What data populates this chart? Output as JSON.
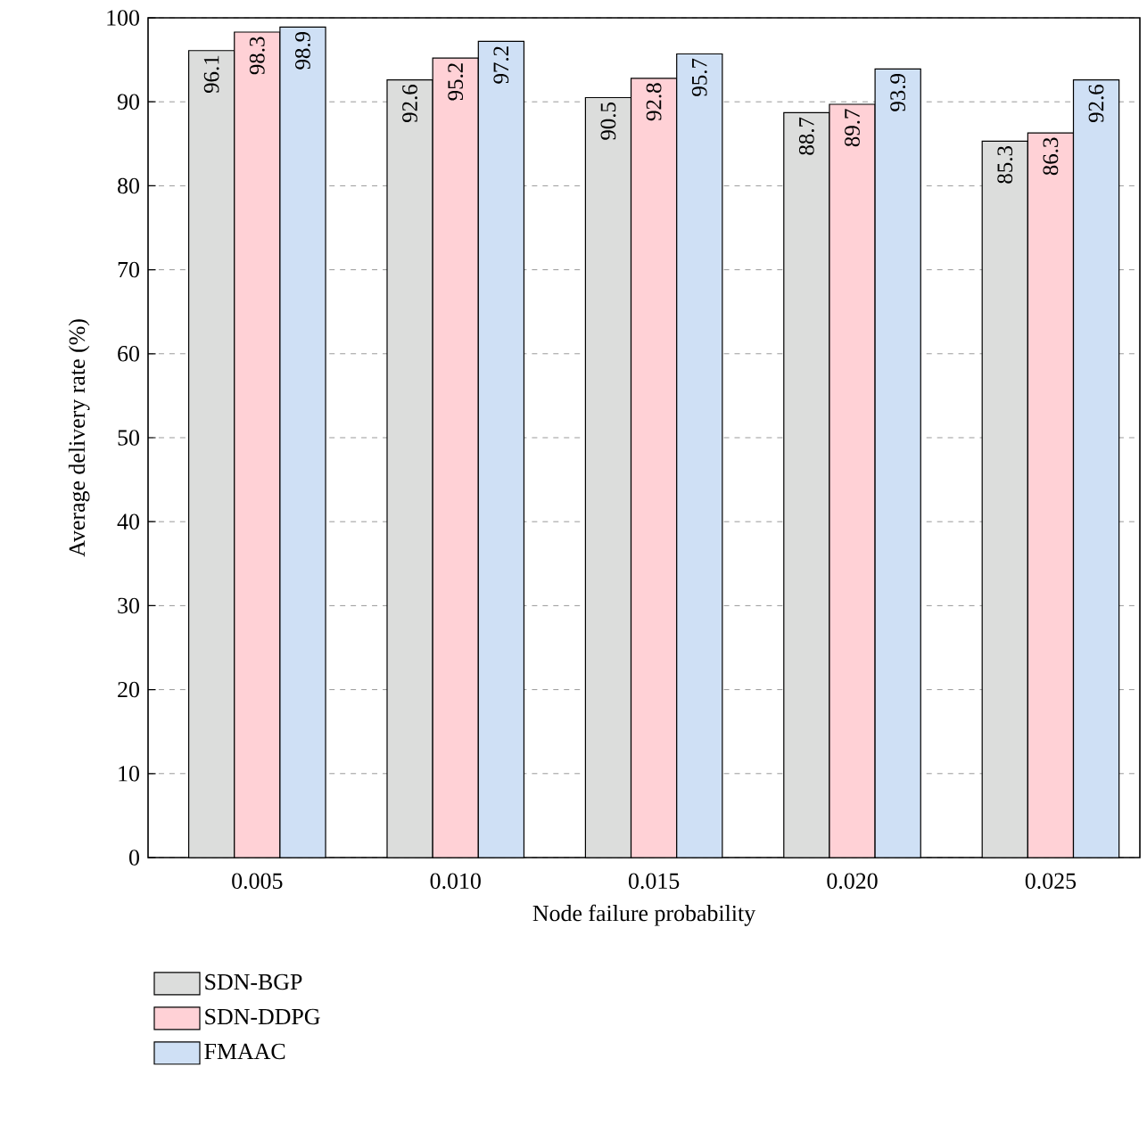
{
  "chart_data": {
    "type": "bar",
    "xlabel": "Node failure probability",
    "ylabel": "Average delivery rate (%)",
    "categories": [
      "0.005",
      "0.010",
      "0.015",
      "0.020",
      "0.025"
    ],
    "series": [
      {
        "name": "SDN-BGP",
        "color": "#dcdddc",
        "values": [
          96.1,
          92.6,
          90.5,
          88.7,
          85.3
        ]
      },
      {
        "name": "SDN-DDPG",
        "color": "#ffd1d6",
        "values": [
          98.3,
          95.2,
          92.8,
          89.7,
          86.3
        ]
      },
      {
        "name": "FMAAC",
        "color": "#cfe0f5",
        "values": [
          98.9,
          97.2,
          95.7,
          93.9,
          92.6
        ]
      }
    ],
    "ylim": [
      0,
      100
    ],
    "yticks": [
      0,
      10,
      20,
      30,
      40,
      50,
      60,
      70,
      80,
      90,
      100
    ],
    "grid": "y",
    "legend": "bottom left",
    "data_labels": true
  }
}
